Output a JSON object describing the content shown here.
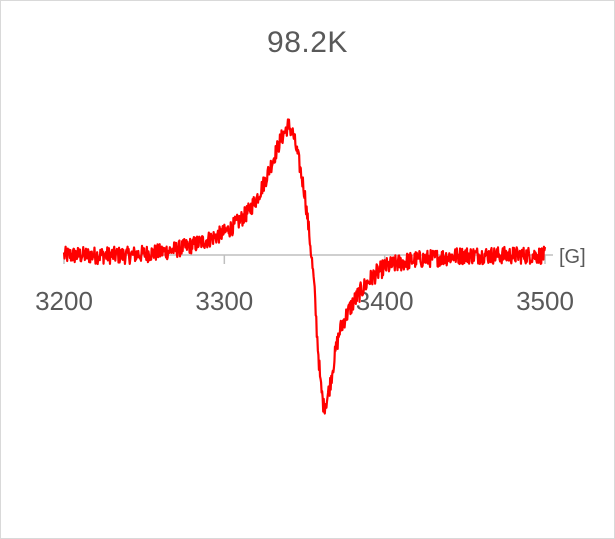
{
  "chart_data": {
    "type": "line",
    "title": "98.2K",
    "xlabel": "[G]",
    "ylabel": "",
    "xlim": [
      3200,
      3500
    ],
    "ylim": [
      -1.0,
      1.0
    ],
    "xticks": [
      3200,
      3300,
      3400,
      3500
    ],
    "grid": false,
    "legend": "none",
    "colors": {
      "series": "#ff0000",
      "axis": "#bfbfbf",
      "text": "#595959"
    },
    "series": [
      {
        "values_x": [
          3200,
          3210,
          3220,
          3230,
          3240,
          3250,
          3260,
          3270,
          3280,
          3290,
          3300,
          3305,
          3310,
          3315,
          3320,
          3325,
          3330,
          3335,
          3340,
          3343,
          3346,
          3350,
          3353,
          3356,
          3358,
          3360,
          3362,
          3364,
          3366,
          3368,
          3370,
          3372,
          3375,
          3380,
          3385,
          3390,
          3395,
          3400,
          3410,
          3420,
          3430,
          3440,
          3450,
          3460,
          3470,
          3480,
          3490,
          3500
        ],
        "values_y": [
          0.0,
          0.0,
          0.0,
          0.0,
          0.0,
          0.01,
          0.02,
          0.04,
          0.07,
          0.11,
          0.16,
          0.2,
          0.25,
          0.31,
          0.4,
          0.52,
          0.67,
          0.82,
          0.93,
          0.86,
          0.7,
          0.45,
          0.15,
          -0.2,
          -0.55,
          -0.85,
          -1.0,
          -0.95,
          -0.85,
          -0.72,
          -0.6,
          -0.5,
          -0.42,
          -0.32,
          -0.24,
          -0.17,
          -0.12,
          -0.08,
          -0.05,
          -0.03,
          -0.02,
          -0.01,
          0.0,
          0.0,
          0.0,
          0.0,
          0.0,
          0.0
        ]
      }
    ]
  }
}
